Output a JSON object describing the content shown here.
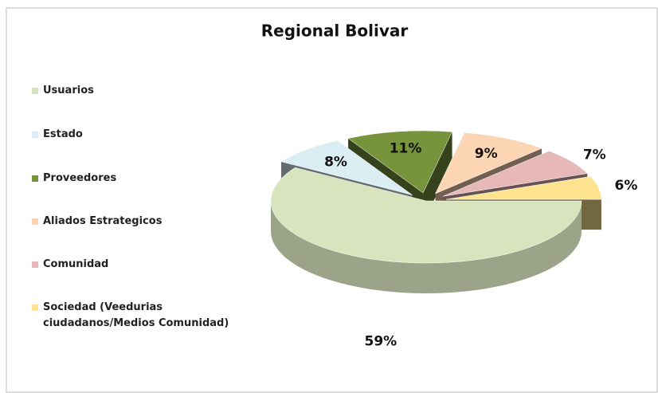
{
  "chart_data": {
    "type": "pie",
    "title": "Regional Bolivar",
    "categories": [
      "Usuarios",
      "Estado",
      "Proveedores",
      "Aliados Estrategicos",
      "Comunidad",
      "Sociedad (Veedurias ciudadanos/Medios Comunidad)"
    ],
    "values": [
      59,
      8,
      11,
      9,
      7,
      6
    ],
    "value_labels": [
      "59%",
      "8%",
      "11%",
      "9%",
      "7%",
      "6%"
    ],
    "colors": [
      "#d7e4bd",
      "#dbeef4",
      "#77933c",
      "#fcd5b5",
      "#e6b9b8",
      "#ffe48f"
    ],
    "legend": "left"
  }
}
